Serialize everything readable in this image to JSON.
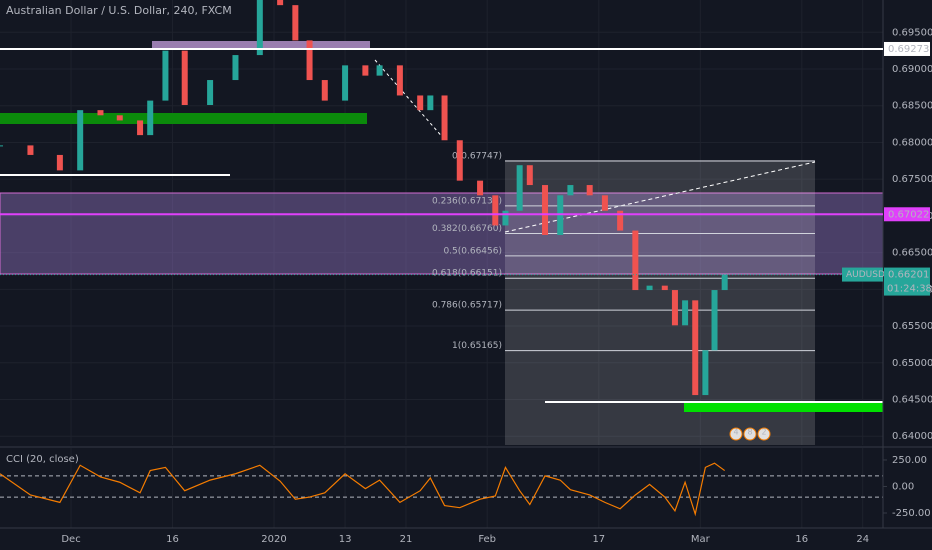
{
  "chart_data": {
    "type": "candlestick",
    "title": "Australian Dollar / U.S. Dollar, 240, FXCM",
    "x": [
      -7,
      -4.0,
      -1.1,
      0.9,
      2.9,
      4.8,
      6.8,
      7.8,
      9.3,
      11.2,
      13.7,
      16.2,
      18.6,
      20.6,
      22.1,
      23.5,
      25.0,
      27.0,
      29.0,
      30.4,
      32.4,
      34.4,
      35.4,
      36.8,
      38.3,
      40.3,
      41.8,
      42.8,
      44.2,
      45.2,
      46.7,
      48.2,
      49.2,
      51.1,
      52.6,
      54.1,
      55.6,
      57.0,
      58.5,
      59.5,
      60.5,
      61.5,
      62.5,
      63.4,
      64.4
    ],
    "values": [
      0.6796,
      0.6783,
      0.6762,
      0.6844,
      0.6837,
      0.683,
      0.681,
      0.6857,
      0.6925,
      0.6851,
      0.6885,
      0.6919,
      0.6994,
      0.6987,
      0.6939,
      0.6885,
      0.6857,
      0.6905,
      0.6891,
      0.6905,
      0.6864,
      0.6844,
      0.6864,
      0.6803,
      0.6748,
      0.6728,
      0.6687,
      0.6707,
      0.6769,
      0.6742,
      0.6674,
      0.6728,
      0.6742,
      0.6728,
      0.6707,
      0.668,
      0.6599,
      0.6605,
      0.6599,
      0.6551,
      0.6585,
      0.6456,
      0.6517,
      0.6599,
      0.662
    ],
    "color_up": "#26a69a",
    "color_down": "#ef5350",
    "xlim": [
      -7,
      80
    ],
    "ylim": [
      0.6388,
      0.6994
    ],
    "grid": true,
    "xticks": [
      {
        "value": 0,
        "label": "Dec"
      },
      {
        "value": 10,
        "label": "16"
      },
      {
        "value": 20,
        "label": "2020"
      },
      {
        "value": 27,
        "label": "13"
      },
      {
        "value": 33,
        "label": "21"
      },
      {
        "value": 41,
        "label": "Feb"
      },
      {
        "value": 52,
        "label": "17"
      },
      {
        "value": 62,
        "label": "Mar"
      },
      {
        "value": 72,
        "label": "16"
      },
      {
        "value": 78,
        "label": "24"
      }
    ],
    "yticks": [
      {
        "value": 0.695,
        "label": "0.69500"
      },
      {
        "value": 0.69,
        "label": "0.69000"
      },
      {
        "value": 0.685,
        "label": "0.68500"
      },
      {
        "value": 0.68,
        "label": "0.68000"
      },
      {
        "value": 0.675,
        "label": "0.67500"
      },
      {
        "value": 0.67,
        "label": "0.67000"
      },
      {
        "value": 0.665,
        "label": "0.66500"
      },
      {
        "value": 0.66,
        "label": "0.66000"
      },
      {
        "value": 0.655,
        "label": "0.65500"
      },
      {
        "value": 0.65,
        "label": "0.65000"
      },
      {
        "value": 0.645,
        "label": "0.64500"
      },
      {
        "value": 0.64,
        "label": "0.64000"
      }
    ],
    "price_lines": [
      {
        "value": 0.69273,
        "label": "0.69273",
        "color": "#ffffff"
      },
      {
        "value": 0.67022,
        "label": "0.67022",
        "color": "#e040fb"
      }
    ],
    "symbol": "AUDUSD",
    "last_price": {
      "value": 0.66201,
      "label": "0.66201"
    },
    "countdown": "01:24:38",
    "fib": [
      {
        "value": 0.67747,
        "label": "0(0.67747)"
      },
      {
        "value": 0.67137,
        "label": "0.236(0.67137)"
      },
      {
        "value": 0.6676,
        "label": "0.382(0.66760)"
      },
      {
        "value": 0.66456,
        "label": "0.5(0.66456)"
      },
      {
        "value": 0.66151,
        "label": "0.618(0.66151)"
      },
      {
        "value": 0.65717,
        "label": "0.786(0.65717)"
      },
      {
        "value": 0.65165,
        "label": "1(0.65165)"
      }
    ],
    "events": [
      "4",
      "8",
      "2"
    ],
    "indicator": {
      "title": "CCI (20, close)",
      "color": "#f57c00",
      "values": [
        120,
        -80,
        -150,
        200,
        90,
        40,
        -60,
        150,
        180,
        -40,
        60,
        120,
        200,
        50,
        -120,
        -100,
        -60,
        120,
        -20,
        60,
        -150,
        -40,
        80,
        -180,
        -200,
        -120,
        -90,
        180,
        -40,
        -170,
        100,
        60,
        -30,
        -80,
        -150,
        -210,
        -80,
        20,
        -100,
        -230,
        40,
        -260,
        180,
        220,
        150
      ],
      "ylim": [
        -335,
        344
      ],
      "yticks": [
        {
          "value": 250,
          "label": "250.00"
        },
        {
          "value": 0,
          "label": "0.00"
        },
        {
          "value": -250,
          "label": "-250.00"
        }
      ],
      "band": [
        -100,
        100
      ]
    }
  }
}
